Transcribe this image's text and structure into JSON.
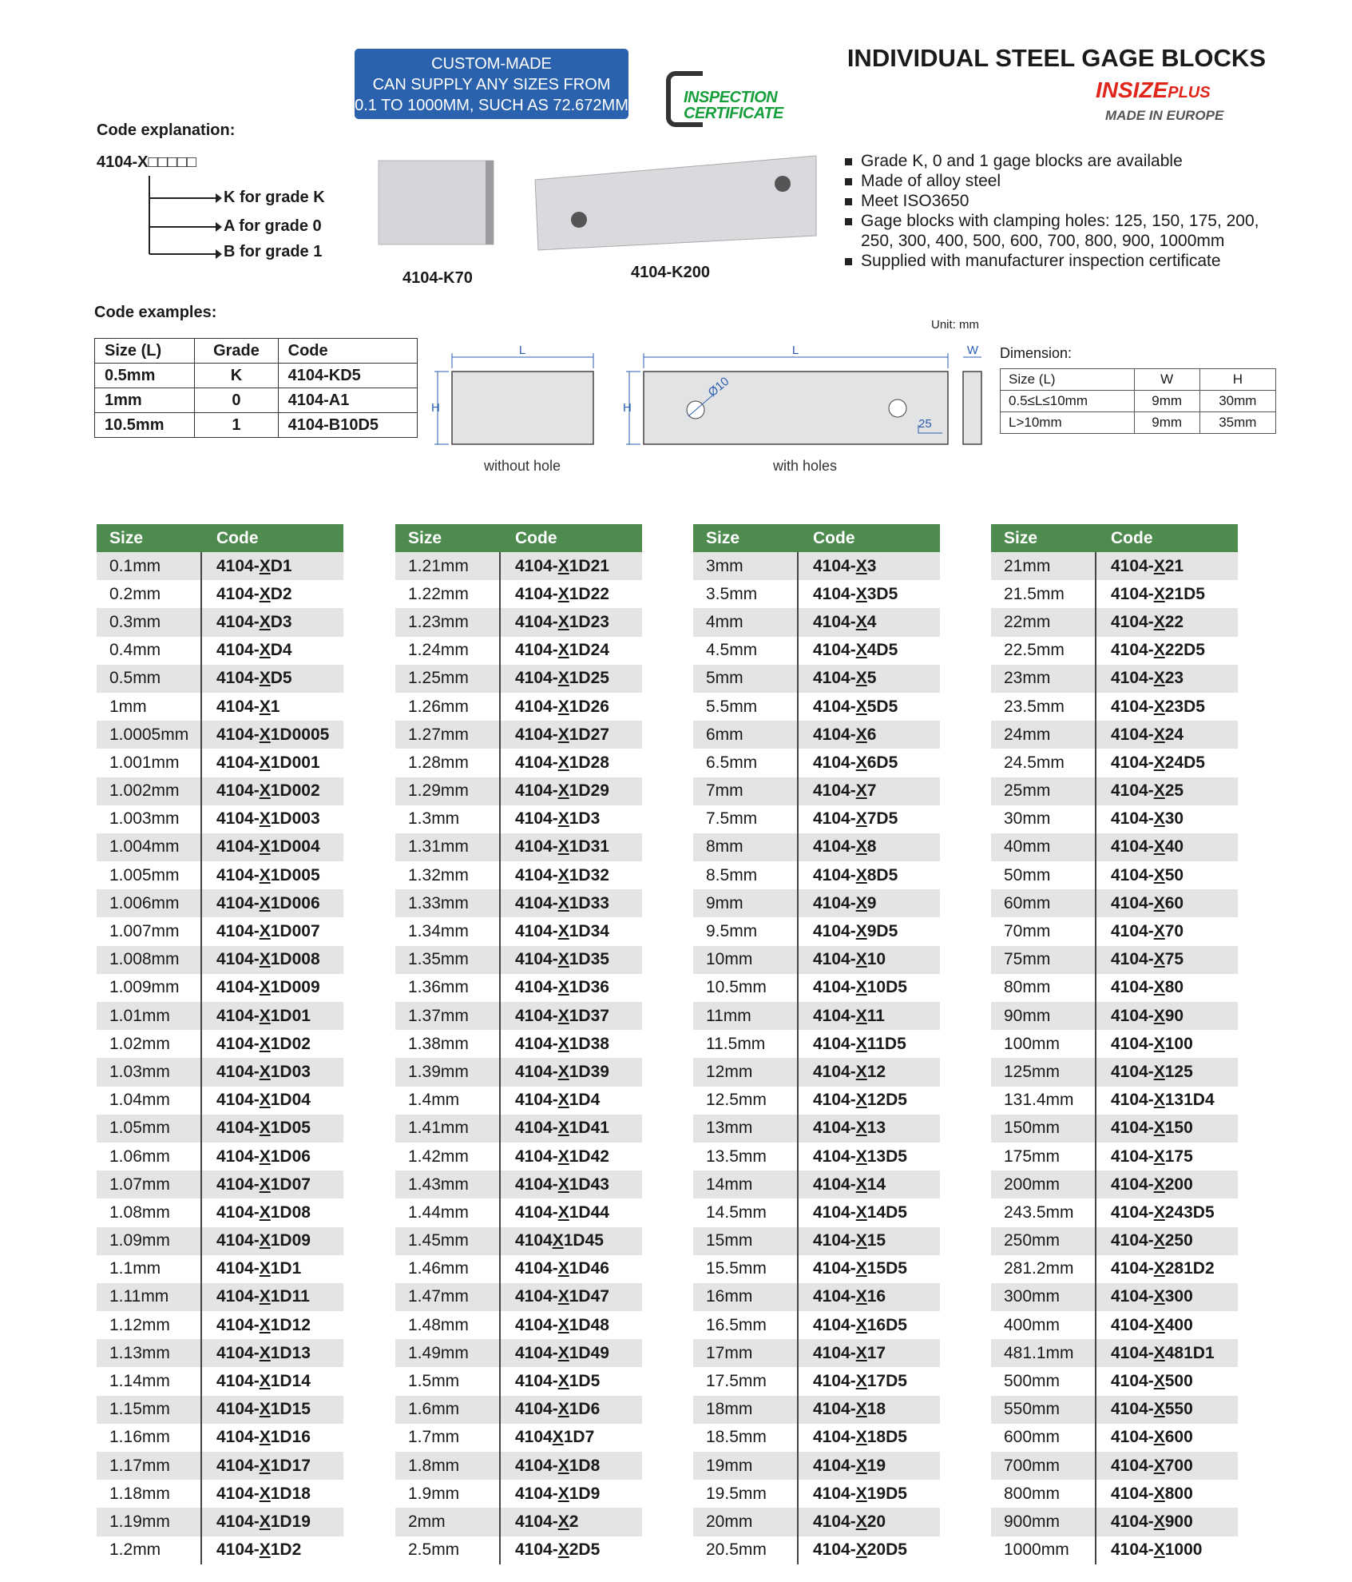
{
  "banner": {
    "lines": [
      "CUSTOM-MADE",
      "CAN SUPPLY ANY SIZES FROM",
      "0.1 TO 1000MM, SUCH AS 72.672MM"
    ]
  },
  "certificate": [
    "INSPECTION",
    "CERTIFICATE"
  ],
  "header": {
    "title": "INDIVIDUAL STEEL GAGE BLOCKS",
    "brand": "INSIZE",
    "brand_suffix": "PLUS",
    "tagline": "MADE IN EUROPE"
  },
  "code_explanation": {
    "title": "Code explanation:",
    "pattern": "4104-X□□□□□",
    "items": [
      "K for grade K",
      "A for grade 0",
      "B for grade 1"
    ]
  },
  "photos": [
    "4104-K70",
    "4104-K200"
  ],
  "features": [
    "Grade K, 0 and 1 gage blocks are available",
    "Made of alloy steel",
    "Meet ISO3650",
    "Gage blocks with clamping holes: 125, 150, 175, 200, 250, 300, 400, 500, 600, 700, 800, 900, 1000mm",
    "Supplied with manufacturer inspection certificate"
  ],
  "code_examples": {
    "title": "Code examples:",
    "header": [
      "Size (L)",
      "Grade",
      "Code"
    ],
    "rows": [
      [
        "0.5mm",
        "K",
        "4104-KD5"
      ],
      [
        "1mm",
        "0",
        "4104-A1"
      ],
      [
        "10.5mm",
        "1",
        "4104-B10D5"
      ]
    ]
  },
  "drawing": {
    "unit": "Unit: mm",
    "length": "L",
    "height": "H",
    "width": "W",
    "diameter": "Ø10",
    "offset": "25",
    "captions": [
      "without hole",
      "with holes"
    ]
  },
  "dimension": {
    "title": "Dimension:",
    "header": [
      "Size (L)",
      "W",
      "H"
    ],
    "rows": [
      [
        "0.5≤L≤10mm",
        "9mm",
        "30mm"
      ],
      [
        "L>10mm",
        "9mm",
        "35mm"
      ]
    ]
  },
  "tables": [
    {
      "header": [
        "Size",
        "Code"
      ],
      "rows": [
        [
          "0.1mm",
          "4104-XD1"
        ],
        [
          "0.2mm",
          "4104-XD2"
        ],
        [
          "0.3mm",
          "4104-XD3"
        ],
        [
          "0.4mm",
          "4104-XD4"
        ],
        [
          "0.5mm",
          "4104-XD5"
        ],
        [
          "1mm",
          "4104-X1"
        ],
        [
          "1.0005mm",
          "4104-X1D0005"
        ],
        [
          "1.001mm",
          "4104-X1D001"
        ],
        [
          "1.002mm",
          "4104-X1D002"
        ],
        [
          "1.003mm",
          "4104-X1D003"
        ],
        [
          "1.004mm",
          "4104-X1D004"
        ],
        [
          "1.005mm",
          "4104-X1D005"
        ],
        [
          "1.006mm",
          "4104-X1D006"
        ],
        [
          "1.007mm",
          "4104-X1D007"
        ],
        [
          "1.008mm",
          "4104-X1D008"
        ],
        [
          "1.009mm",
          "4104-X1D009"
        ],
        [
          "1.01mm",
          "4104-X1D01"
        ],
        [
          "1.02mm",
          "4104-X1D02"
        ],
        [
          "1.03mm",
          "4104-X1D03"
        ],
        [
          "1.04mm",
          "4104-X1D04"
        ],
        [
          "1.05mm",
          "4104-X1D05"
        ],
        [
          "1.06mm",
          "4104-X1D06"
        ],
        [
          "1.07mm",
          "4104-X1D07"
        ],
        [
          "1.08mm",
          "4104-X1D08"
        ],
        [
          "1.09mm",
          "4104-X1D09"
        ],
        [
          "1.1mm",
          "4104-X1D1"
        ],
        [
          "1.11mm",
          "4104-X1D11"
        ],
        [
          "1.12mm",
          "4104-X1D12"
        ],
        [
          "1.13mm",
          "4104-X1D13"
        ],
        [
          "1.14mm",
          "4104-X1D14"
        ],
        [
          "1.15mm",
          "4104-X1D15"
        ],
        [
          "1.16mm",
          "4104-X1D16"
        ],
        [
          "1.17mm",
          "4104-X1D17"
        ],
        [
          "1.18mm",
          "4104-X1D18"
        ],
        [
          "1.19mm",
          "4104-X1D19"
        ],
        [
          "1.2mm",
          "4104-X1D2"
        ]
      ]
    },
    {
      "header": [
        "Size",
        "Code"
      ],
      "rows": [
        [
          "1.21mm",
          "4104-X1D21"
        ],
        [
          "1.22mm",
          "4104-X1D22"
        ],
        [
          "1.23mm",
          "4104-X1D23"
        ],
        [
          "1.24mm",
          "4104-X1D24"
        ],
        [
          "1.25mm",
          "4104-X1D25"
        ],
        [
          "1.26mm",
          "4104-X1D26"
        ],
        [
          "1.27mm",
          "4104-X1D27"
        ],
        [
          "1.28mm",
          "4104-X1D28"
        ],
        [
          "1.29mm",
          "4104-X1D29"
        ],
        [
          "1.3mm",
          "4104-X1D3"
        ],
        [
          "1.31mm",
          "4104-X1D31"
        ],
        [
          "1.32mm",
          "4104-X1D32"
        ],
        [
          "1.33mm",
          "4104-X1D33"
        ],
        [
          "1.34mm",
          "4104-X1D34"
        ],
        [
          "1.35mm",
          "4104-X1D35"
        ],
        [
          "1.36mm",
          "4104-X1D36"
        ],
        [
          "1.37mm",
          "4104-X1D37"
        ],
        [
          "1.38mm",
          "4104-X1D38"
        ],
        [
          "1.39mm",
          "4104-X1D39"
        ],
        [
          "1.4mm",
          "4104-X1D4"
        ],
        [
          "1.41mm",
          "4104-X1D41"
        ],
        [
          "1.42mm",
          "4104-X1D42"
        ],
        [
          "1.43mm",
          "4104-X1D43"
        ],
        [
          "1.44mm",
          "4104-X1D44"
        ],
        [
          "1.45mm",
          "4104X1D45"
        ],
        [
          "1.46mm",
          "4104-X1D46"
        ],
        [
          "1.47mm",
          "4104-X1D47"
        ],
        [
          "1.48mm",
          "4104-X1D48"
        ],
        [
          "1.49mm",
          "4104-X1D49"
        ],
        [
          "1.5mm",
          "4104-X1D5"
        ],
        [
          "1.6mm",
          "4104-X1D6"
        ],
        [
          "1.7mm",
          "4104X1D7"
        ],
        [
          "1.8mm",
          "4104-X1D8"
        ],
        [
          "1.9mm",
          "4104-X1D9"
        ],
        [
          "2mm",
          "4104-X2"
        ],
        [
          "2.5mm",
          "4104-X2D5"
        ]
      ]
    },
    {
      "header": [
        "Size",
        "Code"
      ],
      "rows": [
        [
          "3mm",
          "4104-X3"
        ],
        [
          "3.5mm",
          "4104-X3D5"
        ],
        [
          "4mm",
          "4104-X4"
        ],
        [
          "4.5mm",
          "4104-X4D5"
        ],
        [
          "5mm",
          "4104-X5"
        ],
        [
          "5.5mm",
          "4104-X5D5"
        ],
        [
          "6mm",
          "4104-X6"
        ],
        [
          "6.5mm",
          "4104-X6D5"
        ],
        [
          "7mm",
          "4104-X7"
        ],
        [
          "7.5mm",
          "4104-X7D5"
        ],
        [
          "8mm",
          "4104-X8"
        ],
        [
          "8.5mm",
          "4104-X8D5"
        ],
        [
          "9mm",
          "4104-X9"
        ],
        [
          "9.5mm",
          "4104-X9D5"
        ],
        [
          "10mm",
          "4104-X10"
        ],
        [
          "10.5mm",
          "4104-X10D5"
        ],
        [
          "11mm",
          "4104-X11"
        ],
        [
          "11.5mm",
          "4104-X11D5"
        ],
        [
          "12mm",
          "4104-X12"
        ],
        [
          "12.5mm",
          "4104-X12D5"
        ],
        [
          "13mm",
          "4104-X13"
        ],
        [
          "13.5mm",
          "4104-X13D5"
        ],
        [
          "14mm",
          "4104-X14"
        ],
        [
          "14.5mm",
          "4104-X14D5"
        ],
        [
          "15mm",
          "4104-X15"
        ],
        [
          "15.5mm",
          "4104-X15D5"
        ],
        [
          "16mm",
          "4104-X16"
        ],
        [
          "16.5mm",
          "4104-X16D5"
        ],
        [
          "17mm",
          "4104-X17"
        ],
        [
          "17.5mm",
          "4104-X17D5"
        ],
        [
          "18mm",
          "4104-X18"
        ],
        [
          "18.5mm",
          "4104-X18D5"
        ],
        [
          "19mm",
          "4104-X19"
        ],
        [
          "19.5mm",
          "4104-X19D5"
        ],
        [
          "20mm",
          "4104-X20"
        ],
        [
          "20.5mm",
          "4104-X20D5"
        ]
      ]
    },
    {
      "header": [
        "Size",
        "Code"
      ],
      "rows": [
        [
          "21mm",
          "4104-X21"
        ],
        [
          "21.5mm",
          "4104-X21D5"
        ],
        [
          "22mm",
          "4104-X22"
        ],
        [
          "22.5mm",
          "4104-X22D5"
        ],
        [
          "23mm",
          "4104-X23"
        ],
        [
          "23.5mm",
          "4104-X23D5"
        ],
        [
          "24mm",
          "4104-X24"
        ],
        [
          "24.5mm",
          "4104-X24D5"
        ],
        [
          "25mm",
          "4104-X25"
        ],
        [
          "30mm",
          "4104-X30"
        ],
        [
          "40mm",
          "4104-X40"
        ],
        [
          "50mm",
          "4104-X50"
        ],
        [
          "60mm",
          "4104-X60"
        ],
        [
          "70mm",
          "4104-X70"
        ],
        [
          "75mm",
          "4104-X75"
        ],
        [
          "80mm",
          "4104-X80"
        ],
        [
          "90mm",
          "4104-X90"
        ],
        [
          "100mm",
          "4104-X100"
        ],
        [
          "125mm",
          "4104-X125"
        ],
        [
          "131.4mm",
          "4104-X131D4"
        ],
        [
          "150mm",
          "4104-X150"
        ],
        [
          "175mm",
          "4104-X175"
        ],
        [
          "200mm",
          "4104-X200"
        ],
        [
          "243.5mm",
          "4104-X243D5"
        ],
        [
          "250mm",
          "4104-X250"
        ],
        [
          "281.2mm",
          "4104-X281D2"
        ],
        [
          "300mm",
          "4104-X300"
        ],
        [
          "400mm",
          "4104-X400"
        ],
        [
          "481.1mm",
          "4104-X481D1"
        ],
        [
          "500mm",
          "4104-X500"
        ],
        [
          "550mm",
          "4104-X550"
        ],
        [
          "600mm",
          "4104-X600"
        ],
        [
          "700mm",
          "4104-X700"
        ],
        [
          "800mm",
          "4104-X800"
        ],
        [
          "900mm",
          "4104-X900"
        ],
        [
          "1000mm",
          "4104-X1000"
        ]
      ]
    }
  ]
}
